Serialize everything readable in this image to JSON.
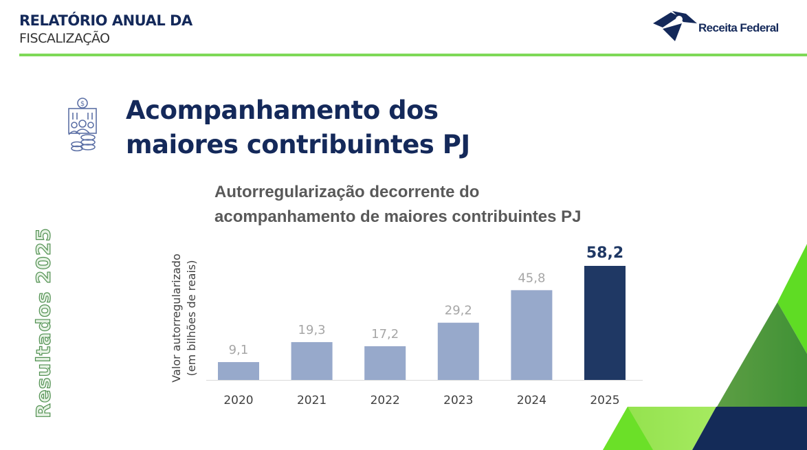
{
  "header": {
    "line1": "RELATÓRIO ANUAL DA",
    "line2": "FISCALIZAÇÃO",
    "logo_text": "Receita Federal"
  },
  "side_label": "Resultados 2025",
  "page_title": {
    "line1": "Acompanhamento dos",
    "line2": "maiores contribuintes PJ"
  },
  "icon": "building-people-coins-icon",
  "colors": {
    "navy": "#1f3864",
    "bar": "#97a9cb",
    "highlight": "#1f3864",
    "accent_green": "#7ed957"
  },
  "chart_data": {
    "type": "bar",
    "title_line1": "Autorregularização decorrente do",
    "title_line2": "acompanhamento de maiores contribuintes PJ",
    "ylabel_line1": "Valor autorregularizado",
    "ylabel_line2": "(em bilhões de reais)",
    "categories": [
      "2020",
      "2021",
      "2022",
      "2023",
      "2024",
      "2025"
    ],
    "values": [
      9.1,
      19.3,
      17.2,
      29.2,
      45.8,
      58.2
    ],
    "labels": [
      "9,1",
      "19,3",
      "17,2",
      "29,2",
      "45,8",
      "58,2"
    ],
    "highlight_index": 5,
    "ylim": [
      0,
      58.2
    ],
    "grid": false
  }
}
